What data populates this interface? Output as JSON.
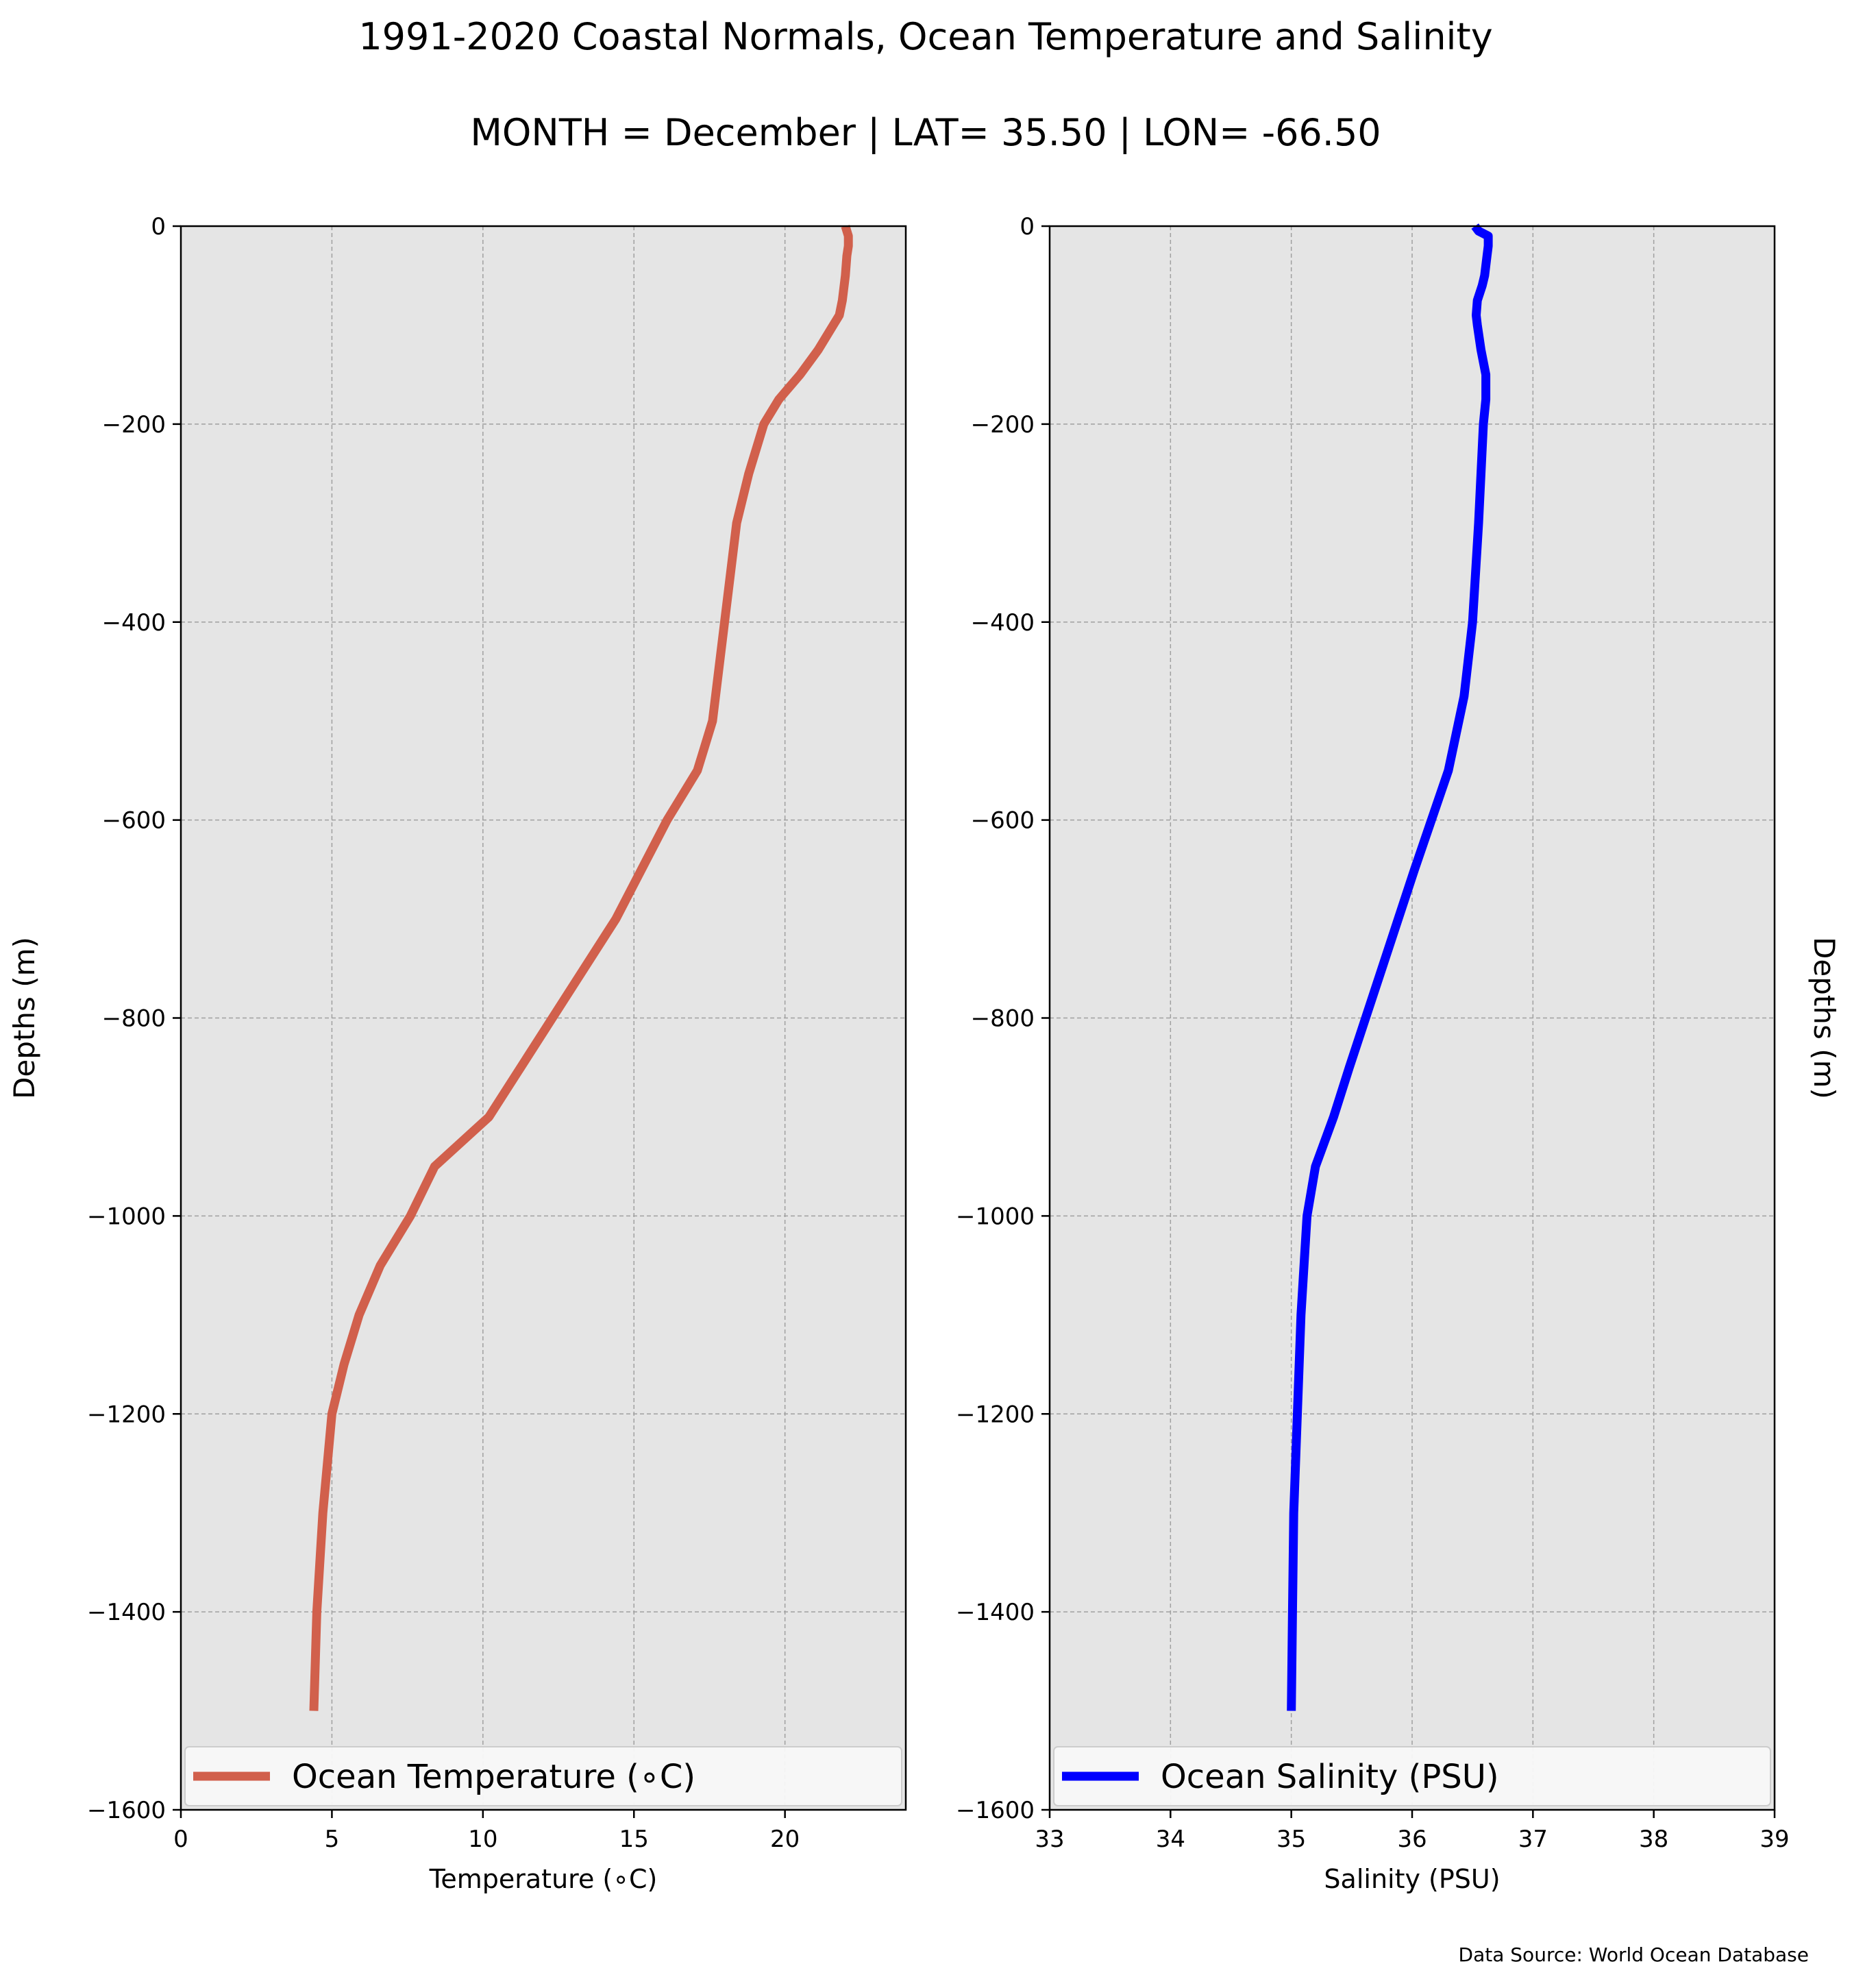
{
  "title": "1991-2020 Coastal Normals, Ocean Temperature and Salinity",
  "subtitle": "MONTH = December | LAT= 35.50 | LON= -66.50",
  "source": "Data Source: World Ocean Database",
  "colors": {
    "panel_bg": "#e5e5e5",
    "grid": "#a0a0a0",
    "temperature_line": "#d1604c",
    "salinity_line": "#0000ff"
  },
  "chart_data": [
    {
      "type": "line",
      "name": "temperature-profile",
      "xlabel": "Temperature (∘C)",
      "ylabel": "Depths (m)",
      "xlim": [
        0,
        24
      ],
      "ylim": [
        -1600,
        0
      ],
      "xticks": [
        0,
        5,
        10,
        15,
        20
      ],
      "yticks": [
        0,
        -200,
        -400,
        -600,
        -800,
        -1000,
        -1200,
        -1400,
        -1600
      ],
      "ytick_labels": [
        "0",
        "−200",
        "−400",
        "−600",
        "−800",
        "−1000",
        "−1200",
        "−1400",
        "−1600"
      ],
      "grid": true,
      "legend": "lower-left",
      "series": [
        {
          "name": "Ocean Temperature (∘C)",
          "x": [
            22.0,
            22.1,
            22.1,
            22.05,
            22.0,
            21.9,
            21.8,
            21.6,
            21.1,
            20.5,
            19.8,
            19.3,
            18.8,
            18.4,
            18.0,
            17.6,
            17.1,
            16.1,
            14.4,
            12.3,
            10.2,
            8.4,
            7.6,
            6.6,
            5.9,
            5.4,
            5.0,
            4.7,
            4.5,
            4.4
          ],
          "y": [
            0,
            -10,
            -20,
            -30,
            -50,
            -75,
            -90,
            -100,
            -125,
            -150,
            -175,
            -200,
            -250,
            -300,
            -400,
            -500,
            -550,
            -600,
            -700,
            -800,
            -900,
            -950,
            -1000,
            -1050,
            -1100,
            -1150,
            -1200,
            -1300,
            -1400,
            -1500
          ]
        }
      ]
    },
    {
      "type": "line",
      "name": "salinity-profile",
      "xlabel": "Salinity (PSU)",
      "ylabel": "Depths (m)",
      "xlim": [
        33,
        39
      ],
      "ylim": [
        -1600,
        0
      ],
      "xticks": [
        33,
        34,
        35,
        36,
        37,
        38,
        39
      ],
      "yticks": [
        0,
        -200,
        -400,
        -600,
        -800,
        -1000,
        -1200,
        -1400,
        -1600
      ],
      "ytick_labels": [
        "0",
        "−200",
        "−400",
        "−600",
        "−800",
        "−1000",
        "−1200",
        "−1400",
        "−1600"
      ],
      "grid": true,
      "legend": "lower-left",
      "series": [
        {
          "name": "Ocean Salinity (PSU)",
          "x": [
            36.52,
            36.55,
            36.63,
            36.63,
            36.62,
            36.6,
            36.58,
            36.54,
            36.53,
            36.54,
            36.57,
            36.61,
            36.61,
            36.59,
            36.55,
            36.5,
            36.43,
            36.3,
            36.16,
            36.02,
            35.75,
            35.48,
            35.35,
            35.2,
            35.13,
            35.08,
            35.05,
            35.02,
            35.01,
            35.0
          ],
          "y": [
            0,
            -5,
            -10,
            -20,
            -30,
            -50,
            -60,
            -75,
            -90,
            -100,
            -125,
            -150,
            -175,
            -200,
            -300,
            -400,
            -475,
            -550,
            -600,
            -650,
            -750,
            -850,
            -900,
            -950,
            -1000,
            -1100,
            -1200,
            -1300,
            -1400,
            -1500
          ]
        }
      ]
    }
  ]
}
